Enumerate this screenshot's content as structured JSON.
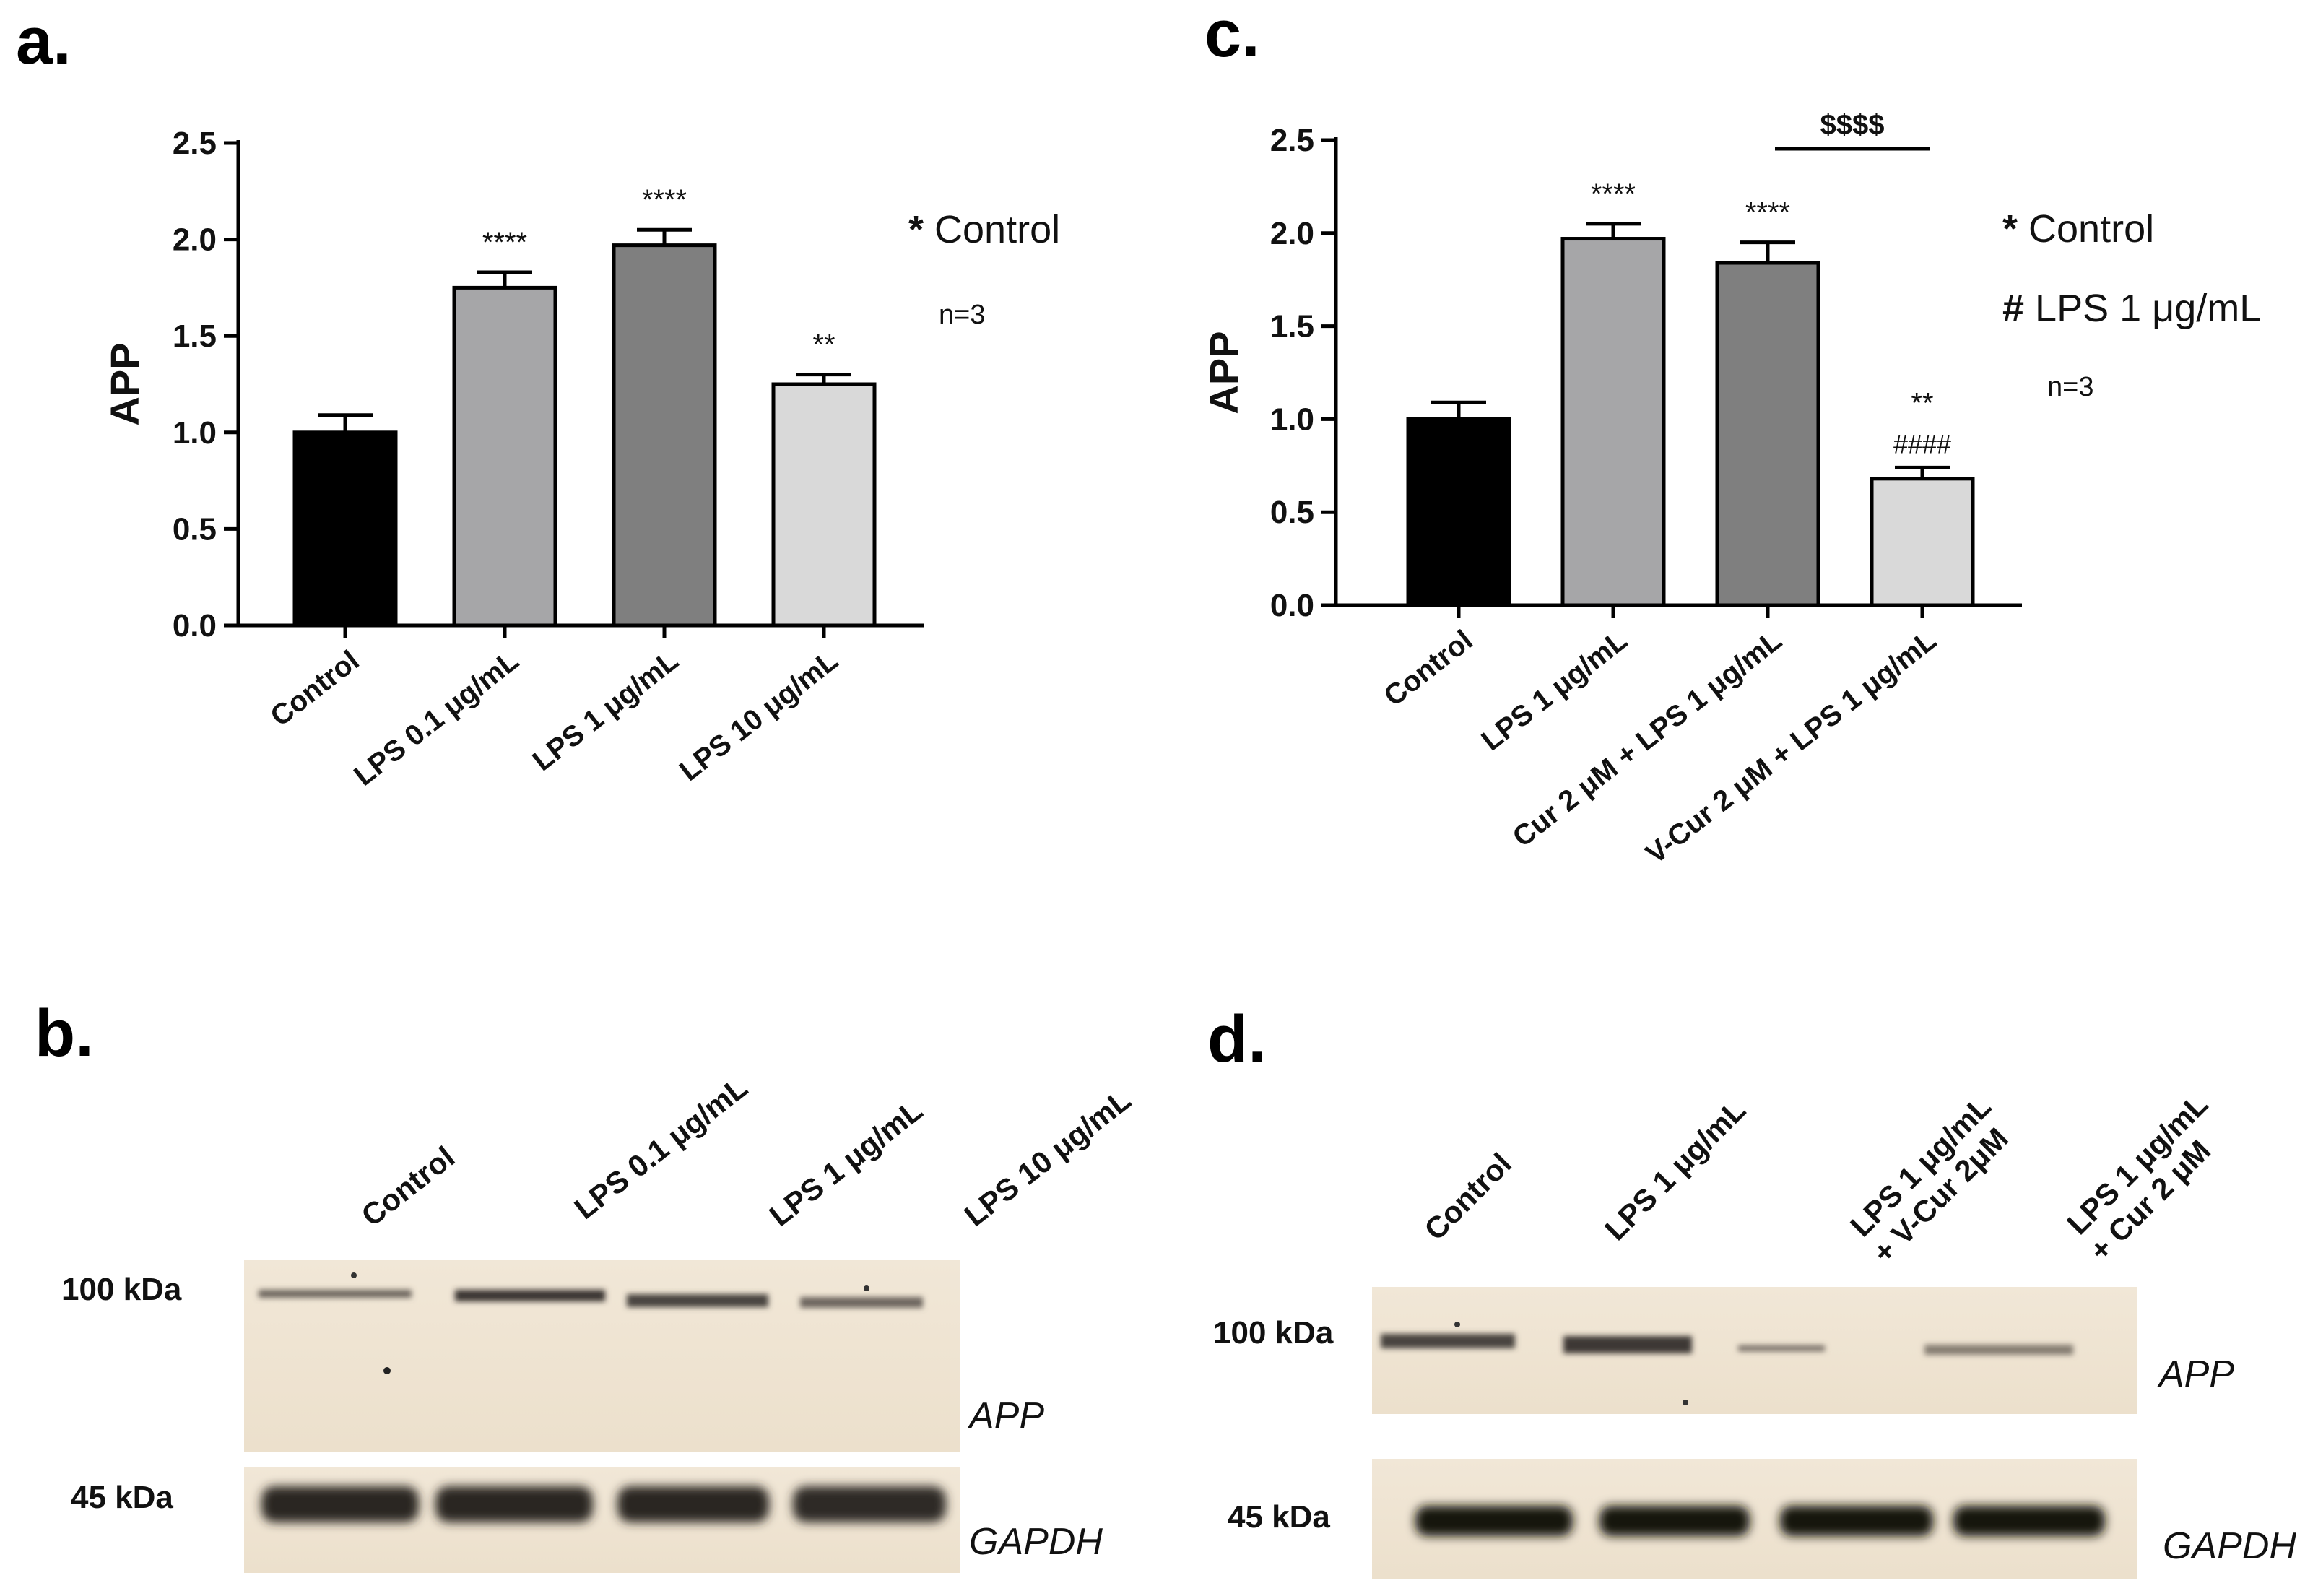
{
  "panels": {
    "a": "a.",
    "b": "b.",
    "c": "c.",
    "d": "d."
  },
  "chart_data": [
    {
      "type": "bar",
      "panel": "a",
      "categories": [
        "Control",
        "LPS 0.1 μg/mL",
        "LPS 1 μg/mL",
        "LPS 10 μg/mL"
      ],
      "values": [
        1.0,
        1.75,
        1.97,
        1.25
      ],
      "errors": [
        0.09,
        0.08,
        0.08,
        0.05
      ],
      "significance": [
        "",
        "****",
        "****",
        "**"
      ],
      "bar_colors": [
        "#000000",
        "#a6a6a8",
        "#7f7f7f",
        "#d9d9d9"
      ],
      "ylabel": "APP",
      "ylim": [
        0,
        2.5
      ],
      "yticks": [
        "0.0",
        "0.5",
        "1.0",
        "1.5",
        "2.0",
        "2.5"
      ],
      "legend_lines": [
        {
          "symbol": "*",
          "text": "Control"
        }
      ],
      "n_label": "n=3",
      "grid": false
    },
    {
      "type": "bar",
      "panel": "c",
      "categories": [
        "Control",
        "LPS 1 μg/mL",
        "Cur 2 μM + LPS 1 μg/mL",
        "V-Cur 2 μM + LPS 1 μg/mL"
      ],
      "values": [
        1.0,
        1.97,
        1.84,
        0.68
      ],
      "errors": [
        0.09,
        0.08,
        0.11,
        0.06
      ],
      "significance": [
        "",
        "****",
        "****",
        "**"
      ],
      "significance2": [
        "",
        "",
        "",
        "####"
      ],
      "bracket": {
        "from": 2,
        "to": 3,
        "label": "$$$$"
      },
      "bar_colors": [
        "#000000",
        "#a6a6a8",
        "#7f7f7f",
        "#d9d9d9"
      ],
      "ylabel": "APP",
      "ylim": [
        0,
        2.5
      ],
      "yticks": [
        "0.0",
        "0.5",
        "1.0",
        "1.5",
        "2.0",
        "2.5"
      ],
      "legend_lines": [
        {
          "symbol": "*",
          "text": "Control"
        },
        {
          "symbol": "#",
          "text": "LPS 1 μg/mL"
        }
      ],
      "n_label": "n=3",
      "grid": false
    }
  ],
  "blot_b": {
    "lanes": [
      "Control",
      "LPS 0.1 μg/mL",
      "LPS 1 μg/mL",
      "LPS 10 μg/mL"
    ],
    "upper_marker": "100 kDa",
    "lower_marker": "45 kDa",
    "upper_protein": "APP",
    "lower_protein": "GAPDH"
  },
  "blot_d": {
    "lanes": [
      [
        "Control"
      ],
      [
        "LPS 1 μg/mL"
      ],
      [
        "LPS 1 μg/mL",
        "+ V-Cur 2μM"
      ],
      [
        "LPS 1 μg/mL",
        "+ Cur 2 μM"
      ]
    ],
    "upper_marker": "100 kDa",
    "lower_marker": "45 kDa",
    "upper_protein": "APP",
    "lower_protein": "GAPDH"
  }
}
